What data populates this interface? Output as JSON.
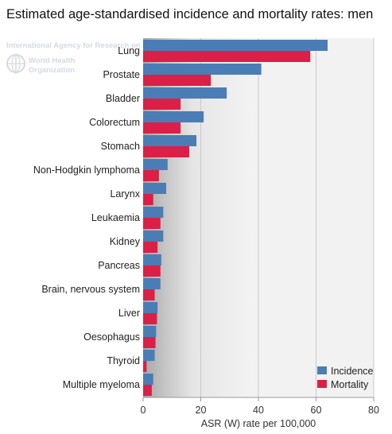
{
  "title": "Estimated age-standardised incidence and mortality rates: men",
  "watermark": {
    "agency": "International Agency for Research on Cancer",
    "who_line1": "World Health",
    "who_line2": "Organization"
  },
  "colors": {
    "incidence": "#4a7db5",
    "mortality": "#dc1f47",
    "plot_bg": "#f2f2f2"
  },
  "chart_data": {
    "type": "bar",
    "orientation": "horizontal",
    "categories": [
      "Lung",
      "Prostate",
      "Bladder",
      "Colorectum",
      "Stomach",
      "Non-Hodgkin lymphoma",
      "Larynx",
      "Leukaemia",
      "Kidney",
      "Pancreas",
      "Brain, nervous system",
      "Liver",
      "Oesophagus",
      "Thyroid",
      "Multiple myeloma"
    ],
    "series": [
      {
        "name": "Incidence",
        "values": [
          64.0,
          41.0,
          29.0,
          21.0,
          18.5,
          8.5,
          8.0,
          7.0,
          7.0,
          6.3,
          6.0,
          5.0,
          4.5,
          4.0,
          3.5
        ]
      },
      {
        "name": "Mortality",
        "values": [
          58.0,
          23.5,
          13.0,
          13.0,
          16.0,
          5.5,
          3.5,
          6.0,
          5.0,
          6.0,
          4.0,
          4.8,
          4.3,
          1.2,
          3.0
        ]
      }
    ],
    "xlabel": "ASR (W) rate per 100,000",
    "xlim": [
      0,
      80
    ],
    "xticks": [
      0,
      20,
      40,
      60,
      80
    ],
    "grid": true,
    "legend_position": "bottom-right"
  }
}
